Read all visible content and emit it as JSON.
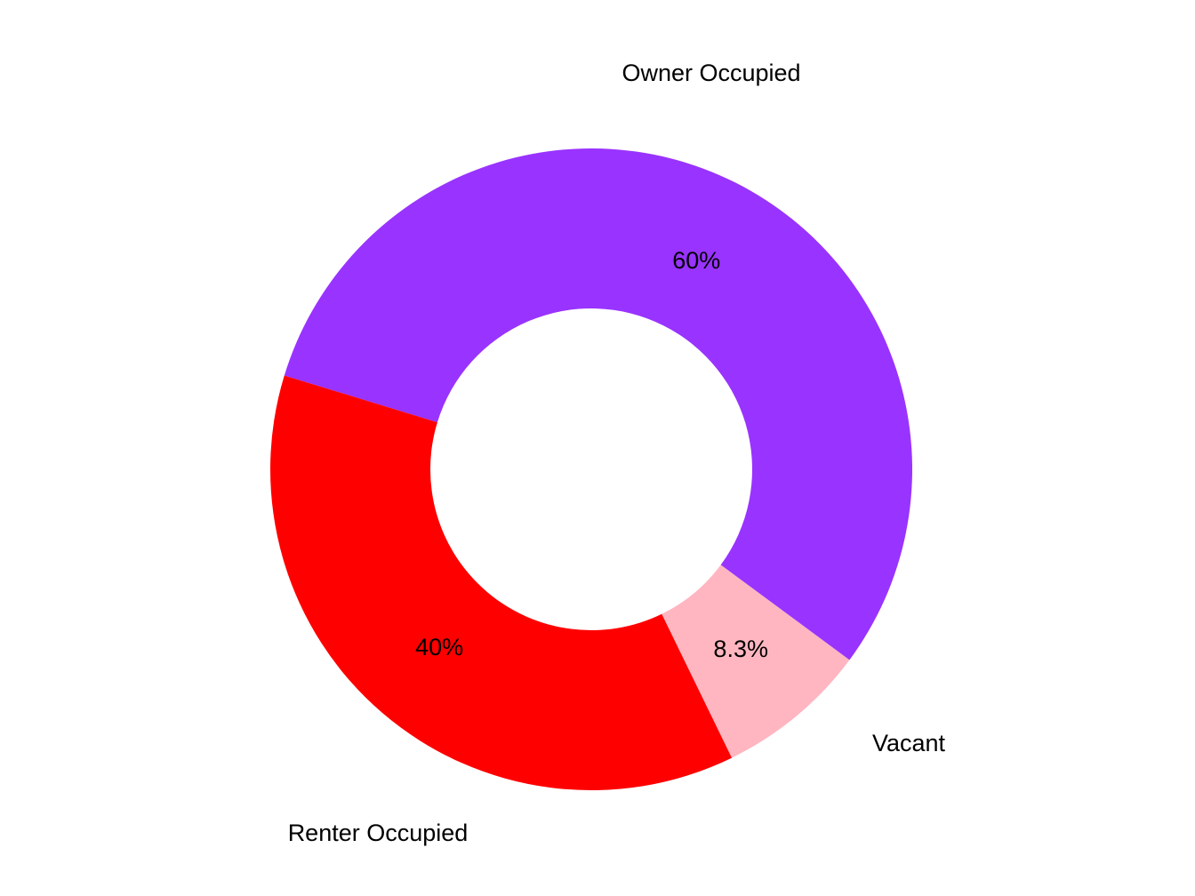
{
  "chart_data": {
    "type": "pie",
    "style": "donut",
    "slices": [
      {
        "label": "Owner Occupied",
        "value": 60,
        "display": "60%",
        "color": "#9933FF"
      },
      {
        "label": "Vacant",
        "value": 8.3,
        "display": "8.3%",
        "color": "#FFB6C1"
      },
      {
        "label": "Renter Occupied",
        "value": 40,
        "display": "40%",
        "color": "#FF0000"
      }
    ]
  }
}
